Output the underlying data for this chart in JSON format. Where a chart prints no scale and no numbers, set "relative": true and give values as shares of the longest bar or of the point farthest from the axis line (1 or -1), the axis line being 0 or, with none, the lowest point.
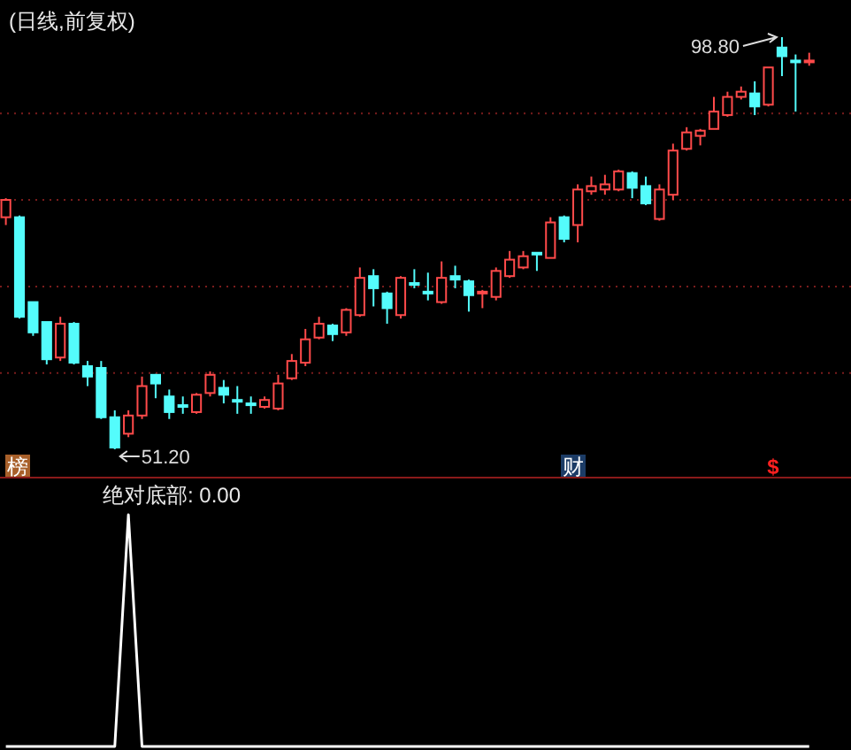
{
  "chart_data": [
    {
      "type": "candlestick",
      "title": "(日线,前复权)",
      "grid": "y",
      "yticks": [
        {
          "value": 60,
          "label": null
        },
        {
          "value": 70,
          "label": null
        },
        {
          "value": 80,
          "label": null
        },
        {
          "value": 90,
          "label": null
        }
      ],
      "categories": [
        null,
        null,
        null,
        null,
        null,
        null,
        null,
        null,
        null,
        null,
        null,
        null,
        null,
        null,
        null,
        null,
        null,
        null,
        null,
        null,
        null,
        null,
        null,
        null,
        null,
        null,
        null,
        null,
        null,
        null,
        null,
        null,
        null,
        null,
        null,
        null,
        null,
        null,
        null,
        null,
        null,
        null,
        null,
        null,
        null,
        null,
        null,
        null,
        null,
        null,
        null,
        null,
        null,
        null,
        null,
        null,
        null,
        null,
        null,
        null
      ],
      "ohlc": [
        [
          78.0,
          80.2,
          77.1,
          80.0
        ],
        [
          78.0,
          78.2,
          66.3,
          66.5
        ],
        [
          68.2,
          68.2,
          64.3,
          64.7
        ],
        [
          65.9,
          65.9,
          61.0,
          61.6
        ],
        [
          61.8,
          66.5,
          61.4,
          65.7
        ],
        [
          65.7,
          65.9,
          61.0,
          61.2
        ],
        [
          60.8,
          61.4,
          58.5,
          59.6
        ],
        [
          60.6,
          61.4,
          54.7,
          54.9
        ],
        [
          54.9,
          55.7,
          51.2,
          51.4
        ],
        [
          53.0,
          55.7,
          52.6,
          55.1
        ],
        [
          55.1,
          59.6,
          54.7,
          58.5
        ],
        [
          59.8,
          59.9,
          57.1,
          58.8
        ],
        [
          57.3,
          58.1,
          54.7,
          55.5
        ],
        [
          56.3,
          57.3,
          55.3,
          56.1
        ],
        [
          55.5,
          57.7,
          55.3,
          57.5
        ],
        [
          57.7,
          60.2,
          57.3,
          59.8
        ],
        [
          58.3,
          59.2,
          56.5,
          57.5
        ],
        [
          56.9,
          58.5,
          55.3,
          56.7
        ],
        [
          56.5,
          57.3,
          55.3,
          56.3
        ],
        [
          56.1,
          57.3,
          55.9,
          56.9
        ],
        [
          55.9,
          59.8,
          55.7,
          58.8
        ],
        [
          59.4,
          62.2,
          59.2,
          61.4
        ],
        [
          61.2,
          65.1,
          60.8,
          63.9
        ],
        [
          64.1,
          66.5,
          63.9,
          65.7
        ],
        [
          65.5,
          65.7,
          63.7,
          64.5
        ],
        [
          64.7,
          67.5,
          64.3,
          67.3
        ],
        [
          66.7,
          72.2,
          66.5,
          71.0
        ],
        [
          71.2,
          72.0,
          67.7,
          69.8
        ],
        [
          69.2,
          69.4,
          65.7,
          67.5
        ],
        [
          66.7,
          71.2,
          66.3,
          71.0
        ],
        [
          70.4,
          72.0,
          69.8,
          70.2
        ],
        [
          69.4,
          71.6,
          68.4,
          69.2
        ],
        [
          68.2,
          72.9,
          68.0,
          71.0
        ],
        [
          71.2,
          72.4,
          69.8,
          70.8
        ],
        [
          70.6,
          70.8,
          67.1,
          69.0
        ],
        [
          69.2,
          69.6,
          67.5,
          69.4
        ],
        [
          68.8,
          72.2,
          68.4,
          71.8
        ],
        [
          71.2,
          74.1,
          71.0,
          73.1
        ],
        [
          72.2,
          74.1,
          72.0,
          73.5
        ],
        [
          73.9,
          73.9,
          71.8,
          73.8
        ],
        [
          73.3,
          78.0,
          73.3,
          77.4
        ],
        [
          78.0,
          78.2,
          75.1,
          75.5
        ],
        [
          77.1,
          81.8,
          75.1,
          81.2
        ],
        [
          81.0,
          82.7,
          80.6,
          81.6
        ],
        [
          81.2,
          82.9,
          80.6,
          81.8
        ],
        [
          81.2,
          83.5,
          81.0,
          83.3
        ],
        [
          83.1,
          83.3,
          80.2,
          81.4
        ],
        [
          81.6,
          82.7,
          79.4,
          79.6
        ],
        [
          77.8,
          81.8,
          77.6,
          81.2
        ],
        [
          80.6,
          86.5,
          80.0,
          85.7
        ],
        [
          85.9,
          88.4,
          85.7,
          87.8
        ],
        [
          87.4,
          88.2,
          86.3,
          88.0
        ],
        [
          88.2,
          91.9,
          88.2,
          90.2
        ],
        [
          89.8,
          92.5,
          89.6,
          91.9
        ],
        [
          91.9,
          93.1,
          91.6,
          92.5
        ],
        [
          92.3,
          93.7,
          89.8,
          90.8
        ],
        [
          91.0,
          95.3,
          90.8,
          95.3
        ],
        [
          97.6,
          98.8,
          94.3,
          96.6
        ],
        [
          96.1,
          96.8,
          90.2,
          96.0
        ],
        [
          96.0,
          97.0,
          95.5,
          96.1
        ]
      ],
      "colors": [
        "#ff4a4a",
        "#54fcfc",
        "#54fcfc",
        "#54fcfc",
        "#ff4a4a",
        "#54fcfc",
        "#54fcfc",
        "#54fcfc",
        "#54fcfc",
        "#ff4a4a",
        "#ff4a4a",
        "#54fcfc",
        "#54fcfc",
        "#54fcfc",
        "#ff4a4a",
        "#ff4a4a",
        "#54fcfc",
        "#54fcfc",
        "#54fcfc",
        "#ff4a4a",
        "#ff4a4a",
        "#ff4a4a",
        "#ff4a4a",
        "#ff4a4a",
        "#54fcfc",
        "#ff4a4a",
        "#ff4a4a",
        "#54fcfc",
        "#54fcfc",
        "#ff4a4a",
        "#54fcfc",
        "#54fcfc",
        "#ff4a4a",
        "#54fcfc",
        "#54fcfc",
        "#ff4a4a",
        "#ff4a4a",
        "#ff4a4a",
        "#ff4a4a",
        "#54fcfc",
        "#ff4a4a",
        "#54fcfc",
        "#ff4a4a",
        "#ff4a4a",
        "#ff4a4a",
        "#ff4a4a",
        "#54fcfc",
        "#54fcfc",
        "#ff4a4a",
        "#ff4a4a",
        "#ff4a4a",
        "#ff4a4a",
        "#ff4a4a",
        "#ff4a4a",
        "#ff4a4a",
        "#54fcfc",
        "#ff4a4a",
        "#54fcfc",
        "#54fcfc",
        "#ff4a4a"
      ],
      "annotations": [
        "98.80",
        "51.20",
        "榜",
        "财",
        "$"
      ]
    },
    {
      "type": "line",
      "title": "绝对底部: 0.00",
      "relative": true,
      "categories": [
        null,
        null,
        null,
        null,
        null,
        null,
        null,
        null,
        null,
        null,
        null,
        null,
        null,
        null,
        null,
        null,
        null,
        null,
        null,
        null,
        null,
        null,
        null,
        null,
        null,
        null,
        null,
        null,
        null,
        null,
        null,
        null,
        null,
        null,
        null,
        null,
        null,
        null,
        null,
        null,
        null,
        null,
        null,
        null,
        null,
        null,
        null,
        null,
        null,
        null,
        null,
        null,
        null,
        null,
        null,
        null,
        null,
        null,
        null,
        null
      ],
      "series": [
        {
          "color": "#ffffff",
          "values": [
            0,
            0,
            0,
            0,
            0,
            0,
            0,
            0,
            0,
            1,
            0,
            0,
            0,
            0,
            0,
            0,
            0,
            0,
            0,
            0,
            0,
            0,
            0,
            0,
            0,
            0,
            0,
            0,
            0,
            0,
            0,
            0,
            0,
            0,
            0,
            0,
            0,
            0,
            0,
            0,
            0,
            0,
            0,
            0,
            0,
            0,
            0,
            0,
            0,
            0,
            0,
            0,
            0,
            0,
            0,
            0,
            0,
            0,
            0,
            0
          ]
        }
      ]
    }
  ]
}
